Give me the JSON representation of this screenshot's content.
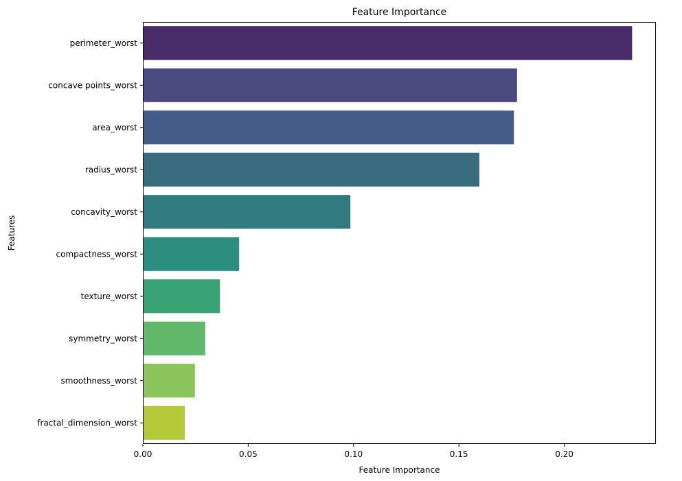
{
  "chart_data": {
    "type": "bar",
    "orientation": "horizontal",
    "title": "Feature Importance",
    "xlabel": "Feature Importance",
    "ylabel": "Features",
    "categories": [
      "perimeter_worst",
      "concave points_worst",
      "area_worst",
      "radius_worst",
      "concavity_worst",
      "compactness_worst",
      "texture_worst",
      "symmetry_worst",
      "smoothness_worst",
      "fractal_dimension_worst"
    ],
    "values": [
      0.2322,
      0.1776,
      0.1761,
      0.1597,
      0.0985,
      0.0457,
      0.0366,
      0.0296,
      0.0247,
      0.0199
    ],
    "colors": [
      "#482c6a",
      "#494a80",
      "#445c87",
      "#3a6c7f",
      "#307b80",
      "#2b8e7e",
      "#3aa375",
      "#61b86a",
      "#8ac45b",
      "#b3c938"
    ],
    "xlim": [
      0,
      0.2435
    ],
    "xticks": [
      0.0,
      0.05,
      0.1,
      0.15,
      0.2
    ],
    "xtick_labels": [
      "0.00",
      "0.05",
      "0.10",
      "0.15",
      "0.20"
    ],
    "grid": false,
    "legend": false
  }
}
